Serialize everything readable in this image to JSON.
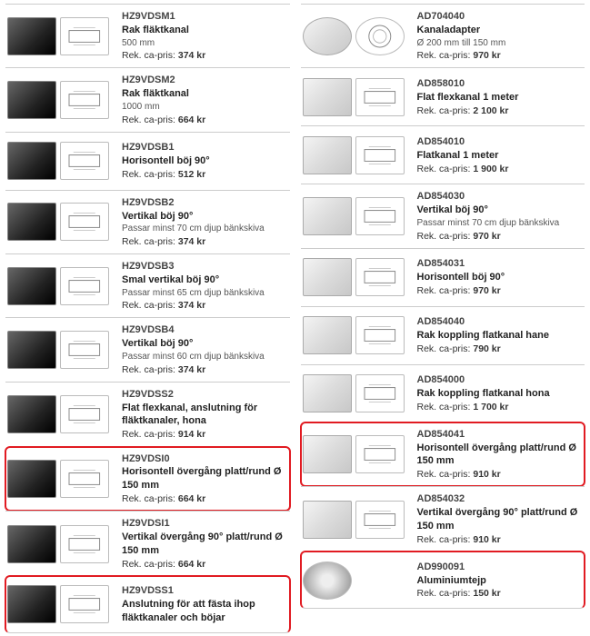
{
  "left": [
    {
      "sku": "HZ9VDSM1",
      "title": "Rak fläktkanal",
      "note": "500 mm",
      "price": "374 kr",
      "thumbA": "dark",
      "thumbB": "line"
    },
    {
      "sku": "HZ9VDSM2",
      "title": "Rak fläktkanal",
      "note": "1000 mm",
      "price": "664 kr",
      "thumbA": "dark",
      "thumbB": "line"
    },
    {
      "sku": "HZ9VDSB1",
      "title": "Horisontell böj 90°",
      "note": "",
      "price": "512 kr",
      "thumbA": "dark",
      "thumbB": "line"
    },
    {
      "sku": "HZ9VDSB2",
      "title": "Vertikal böj 90°",
      "note": "Passar minst 70 cm djup bänkskiva",
      "price": "374 kr",
      "thumbA": "dark",
      "thumbB": "line"
    },
    {
      "sku": "HZ9VDSB3",
      "title": "Smal vertikal böj 90°",
      "note": "Passar minst 65 cm djup bänkskiva",
      "price": "374 kr",
      "thumbA": "dark",
      "thumbB": "line"
    },
    {
      "sku": "HZ9VDSB4",
      "title": "Vertikal böj 90°",
      "note": "Passar minst 60 cm djup bänkskiva",
      "price": "374 kr",
      "thumbA": "dark",
      "thumbB": "line"
    },
    {
      "sku": "HZ9VDSS2",
      "title": "Flat flexkanal, anslutning för fläktkanaler, hona",
      "note": "",
      "price": "914 kr",
      "thumbA": "dark",
      "thumbB": "line"
    },
    {
      "sku": "HZ9VDSI0",
      "title": "Horisontell övergång platt/rund Ø 150 mm",
      "note": "",
      "price": "664 kr",
      "thumbA": "dark",
      "thumbB": "line",
      "highlight": true
    },
    {
      "sku": "HZ9VDSI1",
      "title": "Vertikal övergång 90° platt/rund Ø 150 mm",
      "note": "",
      "price": "664 kr",
      "thumbA": "dark",
      "thumbB": "line"
    },
    {
      "sku": "HZ9VDSS1",
      "title": "Anslutning för att fästa ihop fläktkanaler och böjar",
      "note": "",
      "price": "",
      "thumbA": "dark",
      "thumbB": "line",
      "highlight": true
    }
  ],
  "right": [
    {
      "sku": "AD704040",
      "title": "Kanaladapter",
      "note": "Ø 200 mm till 150 mm",
      "price": "970 kr",
      "thumbA": "light round",
      "thumbB": "line round"
    },
    {
      "sku": "AD858010",
      "title": "Flat flexkanal 1 meter",
      "note": "",
      "price": "2 100 kr",
      "thumbA": "light",
      "thumbB": "line"
    },
    {
      "sku": "AD854010",
      "title": "Flatkanal 1 meter",
      "note": "",
      "price": "1 900 kr",
      "thumbA": "light",
      "thumbB": "line"
    },
    {
      "sku": "AD854030",
      "title": "Vertikal böj 90°",
      "note": "Passar minst 70 cm djup bänkskiva",
      "price": "970 kr",
      "thumbA": "light",
      "thumbB": "line"
    },
    {
      "sku": "AD854031",
      "title": "Horisontell böj 90°",
      "note": "",
      "price": "970 kr",
      "thumbA": "light",
      "thumbB": "line"
    },
    {
      "sku": "AD854040",
      "title": "Rak koppling flatkanal hane",
      "note": "",
      "price": "790 kr",
      "thumbA": "light",
      "thumbB": "line"
    },
    {
      "sku": "AD854000",
      "title": "Rak koppling flatkanal hona",
      "note": "",
      "price": "1 700 kr",
      "thumbA": "light",
      "thumbB": "line"
    },
    {
      "sku": "AD854041",
      "title": "Horisontell övergång platt/rund Ø 150 mm",
      "note": "",
      "price": "910 kr",
      "thumbA": "light",
      "thumbB": "line",
      "highlight": true
    },
    {
      "sku": "AD854032",
      "title": "Vertikal övergång 90° platt/rund Ø 150 mm",
      "note": "",
      "price": "910 kr",
      "thumbA": "light",
      "thumbB": "line"
    },
    {
      "sku": "AD990091",
      "title": "Aluminiumtejp",
      "note": "",
      "price": "150 kr",
      "thumbA": "roll",
      "thumbB": "",
      "highlight": true
    }
  ],
  "priceLabel": "Rek. ca-pris:"
}
